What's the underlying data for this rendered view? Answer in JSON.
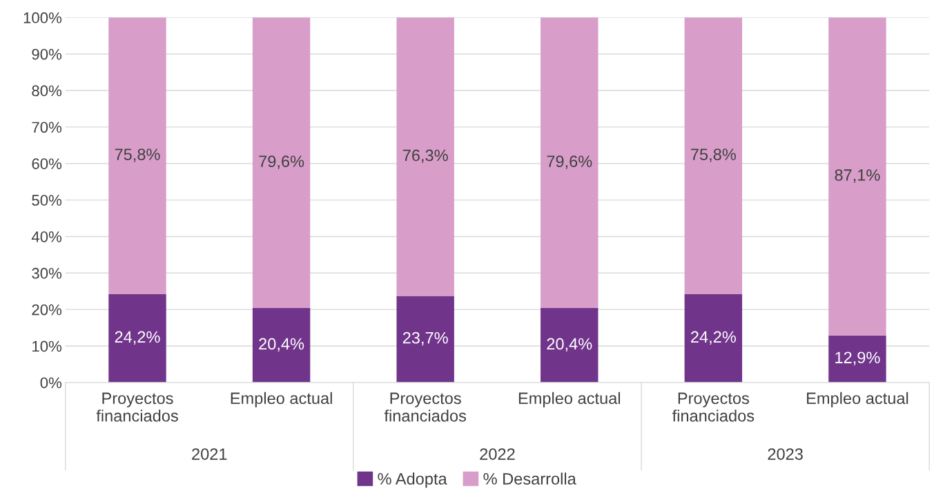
{
  "chart_data": {
    "type": "bar",
    "stacked": true,
    "categories": [
      "Proyectos\nfinanciados",
      "Empleo actual",
      "Proyectos\nfinanciados",
      "Empleo actual",
      "Proyectos\nfinanciados",
      "Empleo actual"
    ],
    "series": [
      {
        "name": "% Adopta",
        "color": "#70358b",
        "values": [
          24.2,
          20.4,
          23.7,
          20.4,
          24.2,
          12.9
        ],
        "value_labels": [
          "24,2%",
          "20,4%",
          "23,7%",
          "20,4%",
          "24,2%",
          "12,9%"
        ]
      },
      {
        "name": "% Desarrolla",
        "color": "#d89ec9",
        "values": [
          75.8,
          79.6,
          76.3,
          79.6,
          75.8,
          87.1
        ],
        "value_labels": [
          "75,8%",
          "79,6%",
          "76,3%",
          "79,6%",
          "75,8%",
          "87,1%"
        ]
      }
    ],
    "annotations": [
      "2021",
      "2022",
      "2023"
    ],
    "ylim": [
      0,
      100
    ],
    "yticks": [
      {
        "value": 0,
        "label": "0%"
      },
      {
        "value": 10,
        "label": "10%"
      },
      {
        "value": 20,
        "label": "20%"
      },
      {
        "value": 30,
        "label": "30%"
      },
      {
        "value": 40,
        "label": "40%"
      },
      {
        "value": 50,
        "label": "50%"
      },
      {
        "value": 60,
        "label": "60%"
      },
      {
        "value": 70,
        "label": "70%"
      },
      {
        "value": 80,
        "label": "80%"
      },
      {
        "value": 90,
        "label": "90%"
      },
      {
        "value": 100,
        "label": "100%"
      }
    ],
    "grid": "y",
    "legend": "bottom"
  }
}
